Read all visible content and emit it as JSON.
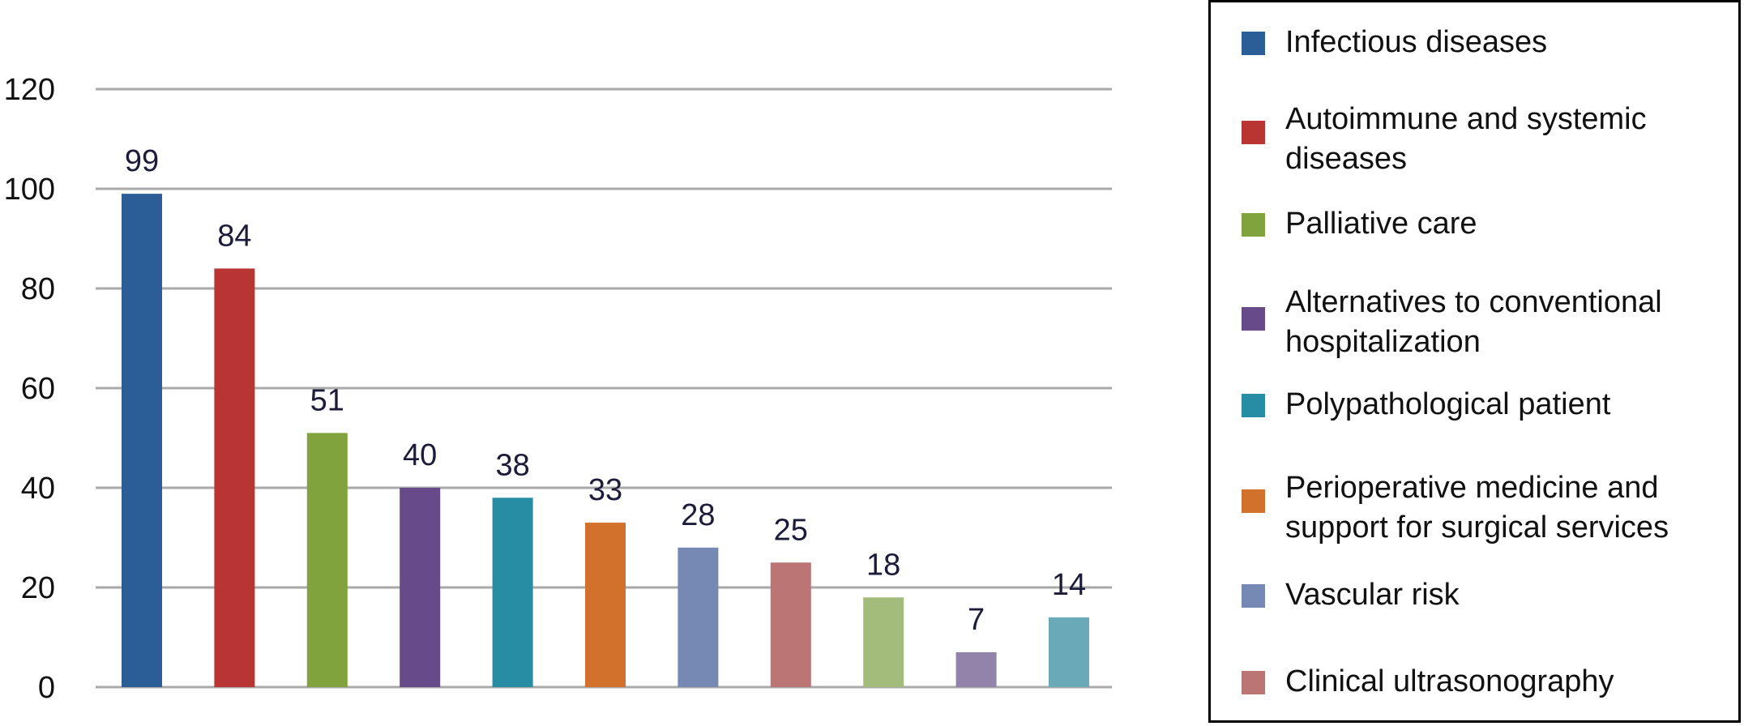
{
  "chart_data": {
    "type": "bar",
    "categories": [
      "Infectious diseases",
      "Autoimmune and systemic diseases",
      "Palliative care",
      "Alternatives to conventional hospitalization",
      "Polypathological patient",
      "Perioperative medicine and support for surgical services",
      "Vascular risk",
      "Clinical ultrasonography",
      "",
      "",
      ""
    ],
    "values": [
      99,
      84,
      51,
      40,
      38,
      33,
      28,
      25,
      18,
      7,
      14
    ],
    "data_labels": [
      "99",
      "84",
      "51",
      "40",
      "38",
      "33",
      "28",
      "25",
      "18",
      "7",
      "14"
    ],
    "colors": [
      "#2b5d97",
      "#b83533",
      "#80a33d",
      "#674a8a",
      "#278da5",
      "#d2712b",
      "#7589b4",
      "#bb7574",
      "#a3bc7c",
      "#9283ab",
      "#6aaab8"
    ],
    "ylim": [
      0,
      120
    ],
    "yticks": [
      0,
      20,
      40,
      60,
      80,
      100,
      120
    ],
    "ytick_labels": [
      "0",
      "20",
      "40",
      "60",
      "80",
      "100",
      "120"
    ],
    "grid": true,
    "legend_position": "right",
    "title": "",
    "xlabel": "",
    "ylabel": ""
  },
  "legend": {
    "items": [
      {
        "label": "Infectious diseases",
        "color": "#2b5d97"
      },
      {
        "label": "Autoimmune and systemic diseases",
        "color": "#b83533"
      },
      {
        "label": "Palliative care",
        "color": "#80a33d"
      },
      {
        "label": "Alternatives to conventional hospitalization",
        "color": "#674a8a"
      },
      {
        "label": "Polypathological patient",
        "color": "#278da5"
      },
      {
        "label": "Perioperative medicine and support for surgical services",
        "color": "#d2712b"
      },
      {
        "label": "Vascular risk",
        "color": "#7589b4"
      },
      {
        "label": "Clinical ultrasonography",
        "color": "#bb7574"
      }
    ]
  }
}
